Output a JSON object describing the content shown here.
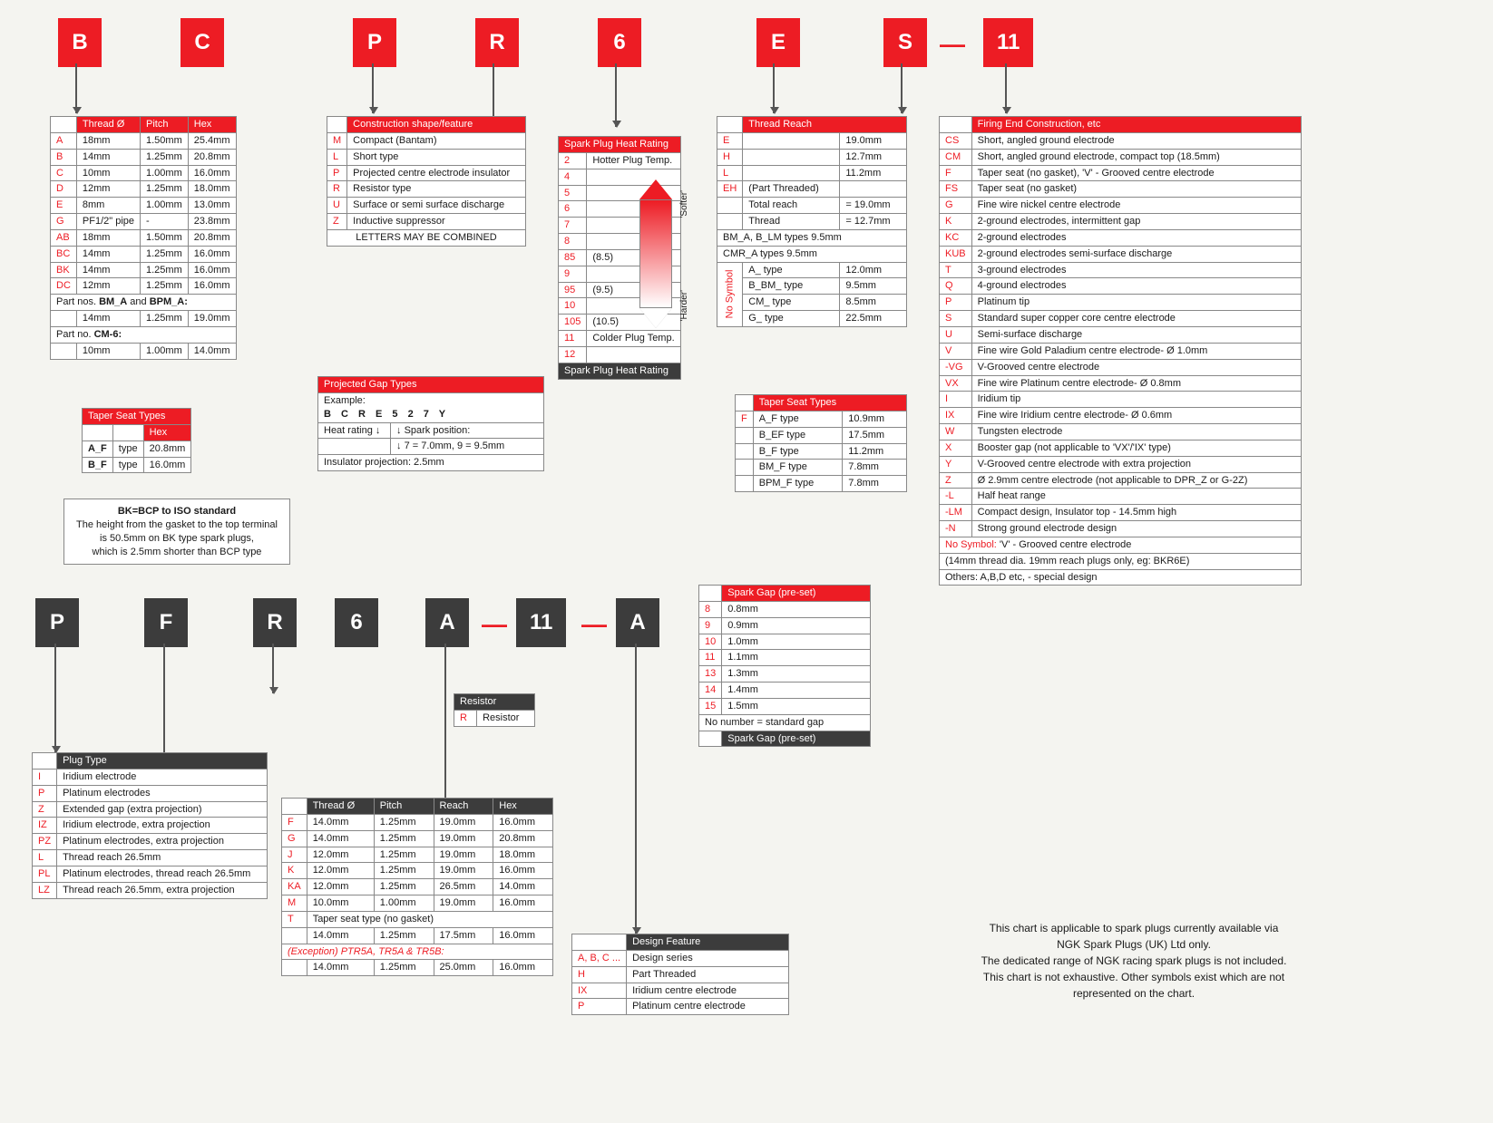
{
  "top_codes": [
    {
      "t": "B",
      "c": "red"
    },
    {
      "t": "C",
      "c": "red"
    },
    {
      "t": "P",
      "c": "red"
    },
    {
      "t": "R",
      "c": "red"
    },
    {
      "t": "6",
      "c": "red"
    },
    {
      "t": "E",
      "c": "red"
    },
    {
      "t": "S",
      "c": "red"
    },
    {
      "t": "—",
      "c": "dash"
    },
    {
      "t": "11",
      "c": "red"
    }
  ],
  "bottom_codes": [
    {
      "t": "P",
      "c": "dark"
    },
    {
      "t": "F",
      "c": "dark"
    },
    {
      "t": "R",
      "c": "dark"
    },
    {
      "t": "6",
      "c": "dark"
    },
    {
      "t": "A",
      "c": "dark"
    },
    {
      "t": "—",
      "c": "dash"
    },
    {
      "t": "11",
      "c": "dark"
    },
    {
      "t": "—",
      "c": "dash"
    },
    {
      "t": "A",
      "c": "dark"
    }
  ],
  "threadDia": {
    "title": "",
    "cols": [
      "",
      "Thread Ø",
      "Pitch",
      "Hex"
    ],
    "rows": [
      [
        "A",
        "18mm",
        "1.50mm",
        "25.4mm"
      ],
      [
        "B",
        "14mm",
        "1.25mm",
        "20.8mm"
      ],
      [
        "C",
        "10mm",
        "1.00mm",
        "16.0mm"
      ],
      [
        "D",
        "12mm",
        "1.25mm",
        "18.0mm"
      ],
      [
        "E",
        "8mm",
        "1.00mm",
        "13.0mm"
      ],
      [
        "G",
        "PF1/2\" pipe",
        "-",
        "23.8mm"
      ],
      [
        "AB",
        "18mm",
        "1.50mm",
        "20.8mm"
      ],
      [
        "BC",
        "14mm",
        "1.25mm",
        "16.0mm"
      ],
      [
        "BK",
        "14mm",
        "1.25mm",
        "16.0mm"
      ],
      [
        "DC",
        "12mm",
        "1.25mm",
        "16.0mm"
      ]
    ],
    "extra1_label": "Part nos. BM_A and BPM_A:",
    "extra1": [
      "",
      "14mm",
      "1.25mm",
      "19.0mm"
    ],
    "extra2_label": "Part no. CM-6:",
    "extra2": [
      "",
      "10mm",
      "1.00mm",
      "14.0mm"
    ]
  },
  "taperSeat1": {
    "title": "Taper Seat Types",
    "cols": [
      "",
      "",
      "Hex"
    ],
    "rows": [
      [
        "A_F",
        "type",
        "20.8mm"
      ],
      [
        "B_F",
        "type",
        "16.0mm"
      ]
    ]
  },
  "bkNote": {
    "bold": "BK=BCP to ISO standard",
    "lines": [
      "The height from the gasket to the top terminal",
      "is 50.5mm on BK type spark plugs,",
      "which is 2.5mm shorter than BCP type"
    ]
  },
  "construction": {
    "title": "Construction shape/feature",
    "rows": [
      [
        "M",
        "Compact (Bantam)"
      ],
      [
        "L",
        "Short type"
      ],
      [
        "P",
        "Projected centre electrode insulator"
      ],
      [
        "R",
        "Resistor type"
      ],
      [
        "U",
        "Surface or semi surface discharge"
      ],
      [
        "Z",
        "Inductive suppressor"
      ]
    ],
    "footer": "LETTERS MAY BE COMBINED"
  },
  "projGap": {
    "title": "Projected Gap Types",
    "example_label": "Example:",
    "example": "B C R E 5 2 7 Y",
    "heat_label": "Heat rating",
    "spark_label": "Spark position:",
    "spark_line": "7 = 7.0mm, 9 = 9.5mm",
    "ins_line": "Insulator projection: 2.5mm"
  },
  "heatRating": {
    "title": "Spark Plug Heat Rating",
    "hot": "Hotter Plug Temp.",
    "cold": "Colder Plug Temp.",
    "softer": "'Softer'",
    "harder": "'Harder'",
    "rows": [
      [
        "2",
        ""
      ],
      [
        "4",
        ""
      ],
      [
        "5",
        ""
      ],
      [
        "6",
        ""
      ],
      [
        "7",
        ""
      ],
      [
        "8",
        ""
      ],
      [
        "85",
        "(8.5)"
      ],
      [
        "9",
        ""
      ],
      [
        "95",
        "(9.5)"
      ],
      [
        "10",
        ""
      ],
      [
        "105",
        "(10.5)"
      ],
      [
        "11",
        ""
      ],
      [
        "12",
        ""
      ]
    ],
    "footer": "Spark Plug Heat Rating"
  },
  "threadReach": {
    "title": "Thread Reach",
    "rows": [
      [
        "E",
        "",
        "19.0mm"
      ],
      [
        "H",
        "",
        "12.7mm"
      ],
      [
        "L",
        "",
        "11.2mm"
      ],
      [
        "EH",
        "(Part Threaded)",
        ""
      ],
      [
        "",
        "Total reach",
        "= 19.0mm"
      ],
      [
        "",
        "Thread",
        "= 12.7mm"
      ]
    ],
    "bm_line": "BM_A, B_LM types    9.5mm",
    "cmr_line": "CMR_A types            9.5mm",
    "noSymbol_title": "No Symbol",
    "noSymbol": [
      [
        "A_ type",
        "12.0mm"
      ],
      [
        "B_BM_ type",
        "9.5mm"
      ],
      [
        "CM_ type",
        "8.5mm"
      ],
      [
        "G_ type",
        "22.5mm"
      ]
    ]
  },
  "taperSeat2": {
    "title": "Taper Seat Types",
    "rows": [
      [
        "F",
        "A_F type",
        "10.9mm"
      ],
      [
        "",
        "B_EF type",
        "17.5mm"
      ],
      [
        "",
        "B_F type",
        "11.2mm"
      ],
      [
        "",
        "BM_F type",
        "7.8mm"
      ],
      [
        "",
        "BPM_F type",
        "7.8mm"
      ]
    ]
  },
  "firingEnd": {
    "title": "Firing End Construction, etc",
    "rows": [
      [
        "CS",
        "Short, angled ground electrode"
      ],
      [
        "CM",
        "Short, angled ground electrode, compact top (18.5mm)"
      ],
      [
        "F",
        "Taper seat (no gasket), 'V' - Grooved centre electrode"
      ],
      [
        "FS",
        "Taper seat (no gasket)"
      ],
      [
        "G",
        "Fine wire nickel centre electrode"
      ],
      [
        "K",
        "2-ground electrodes, intermittent gap"
      ],
      [
        "KC",
        "2-ground electrodes"
      ],
      [
        "KUB",
        "2-ground electrodes semi-surface discharge"
      ],
      [
        "T",
        "3-ground electrodes"
      ],
      [
        "Q",
        "4-ground electrodes"
      ],
      [
        "P",
        "Platinum tip"
      ],
      [
        "S",
        "Standard super copper core centre electrode"
      ],
      [
        "U",
        "Semi-surface discharge"
      ],
      [
        "V",
        "Fine wire Gold Paladium centre electrode- Ø 1.0mm"
      ],
      [
        "-VG",
        "V-Grooved centre electrode"
      ],
      [
        "VX",
        "Fine wire Platinum centre electrode- Ø 0.8mm"
      ],
      [
        "I",
        "Iridium tip"
      ],
      [
        "IX",
        "Fine wire Iridium centre electrode- Ø 0.6mm"
      ],
      [
        "W",
        "Tungsten electrode"
      ],
      [
        "X",
        "Booster gap (not applicable to 'VX'/'IX' type)"
      ],
      [
        "Y",
        "V-Grooved centre electrode with extra projection"
      ],
      [
        "Z",
        "Ø 2.9mm centre electrode (not applicable to DPR_Z or G-2Z)"
      ],
      [
        "-L",
        "Half heat range"
      ],
      [
        "-LM",
        "Compact design, Insulator top - 14.5mm high"
      ],
      [
        "-N",
        "Strong ground electrode design"
      ]
    ],
    "noSymbol": "No Symbol: 'V' - Grooved centre electrode",
    "sub": "(14mm thread dia. 19mm reach plugs only, eg: BKR6E)",
    "others": "Others:           A,B,D etc, - special design"
  },
  "sparkGap": {
    "title": "Spark Gap (pre-set)",
    "rows": [
      [
        "8",
        "0.8mm"
      ],
      [
        "9",
        "0.9mm"
      ],
      [
        "10",
        "1.0mm"
      ],
      [
        "11",
        "1.1mm"
      ],
      [
        "13",
        "1.3mm"
      ],
      [
        "14",
        "1.4mm"
      ],
      [
        "15",
        "1.5mm"
      ]
    ],
    "footer1": "No number = standard gap",
    "footer2": "Spark Gap (pre-set)"
  },
  "plugType": {
    "title": "Plug Type",
    "rows": [
      [
        "I",
        "Iridium electrode"
      ],
      [
        "P",
        "Platinum electrodes"
      ],
      [
        "Z",
        "Extended gap (extra projection)"
      ],
      [
        "IZ",
        "Iridium electrode, extra projection"
      ],
      [
        "PZ",
        "Platinum electrodes, extra projection"
      ],
      [
        "L",
        "Thread reach 26.5mm"
      ],
      [
        "PL",
        "Platinum electrodes, thread reach 26.5mm"
      ],
      [
        "LZ",
        "Thread reach 26.5mm, extra projection"
      ]
    ]
  },
  "threadTable2": {
    "cols": [
      "",
      "Thread Ø",
      "Pitch",
      "Reach",
      "Hex"
    ],
    "rows": [
      [
        "F",
        "14.0mm",
        "1.25mm",
        "19.0mm",
        "16.0mm"
      ],
      [
        "G",
        "14.0mm",
        "1.25mm",
        "19.0mm",
        "20.8mm"
      ],
      [
        "J",
        "12.0mm",
        "1.25mm",
        "19.0mm",
        "18.0mm"
      ],
      [
        "K",
        "12.0mm",
        "1.25mm",
        "19.0mm",
        "16.0mm"
      ],
      [
        "KA",
        "12.0mm",
        "1.25mm",
        "26.5mm",
        "14.0mm"
      ],
      [
        "M",
        "10.0mm",
        "1.00mm",
        "19.0mm",
        "16.0mm"
      ]
    ],
    "tline": [
      "T",
      "Taper seat type (no gasket)"
    ],
    "trow": [
      "",
      "14.0mm",
      "1.25mm",
      "17.5mm",
      "16.0mm"
    ],
    "exception": "(Exception) PTR5A, TR5A & TR5B:",
    "exrow": [
      "",
      "14.0mm",
      "1.25mm",
      "25.0mm",
      "16.0mm"
    ]
  },
  "resistor": {
    "title": "Resistor",
    "rows": [
      [
        "R",
        "Resistor"
      ]
    ]
  },
  "designFeature": {
    "title": "Design Feature",
    "rows": [
      [
        "A, B, C ...",
        "Design series"
      ],
      [
        "H",
        "Part Threaded"
      ],
      [
        "IX",
        "Iridium centre electrode"
      ],
      [
        "P",
        "Platinum centre electrode"
      ]
    ]
  },
  "disclaimer": [
    "This chart is applicable to spark plugs currently available via",
    "NGK Spark Plugs (UK) Ltd only.",
    "The dedicated range of NGK racing spark plugs is not included.",
    "This chart is not exhaustive. Other symbols exist which are not",
    "represented on the chart."
  ],
  "colors": {
    "red": "#ed1c24",
    "dark": "#3c3c3c",
    "border": "#888",
    "bg": "#f4f4f0"
  }
}
